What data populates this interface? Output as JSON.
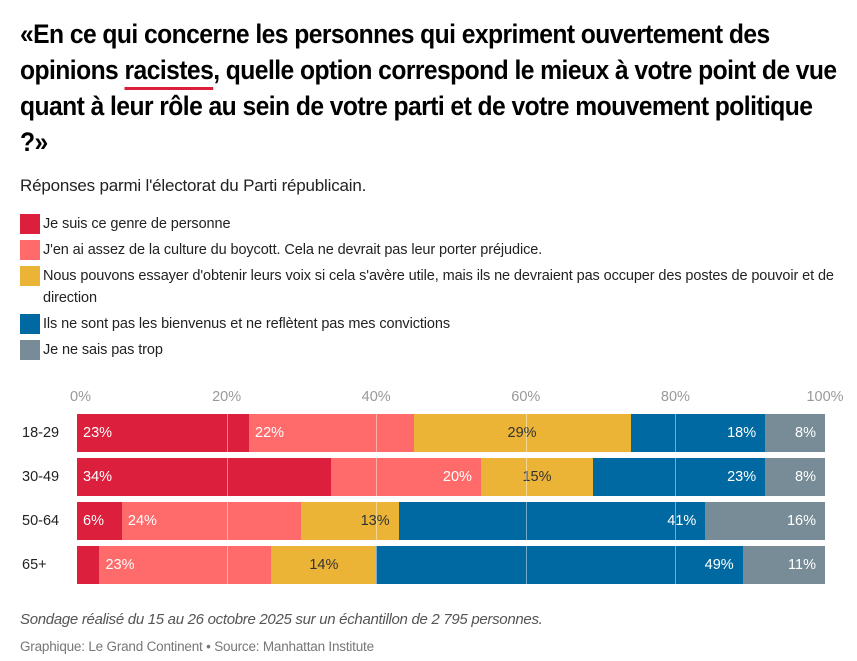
{
  "title": {
    "before": "«En ce qui concerne les personnes qui expriment ouvertement des opinions ",
    "highlight": "racistes",
    "after": ", quelle option correspond le mieux à votre point de vue quant à leur rôle au sein de votre parti et de votre mouvement politique ?»"
  },
  "subtitle": "Réponses parmi l'électorat du Parti républicain.",
  "colors": {
    "accent_underline": "#dc1f3c"
  },
  "chart_data": {
    "type": "bar",
    "orientation": "horizontal",
    "stacked": true,
    "title": "«En ce qui concerne les personnes qui expriment ouvertement des opinions racistes, quelle option correspond le mieux à votre point de vue quant à leur rôle au sein de votre parti et de votre mouvement politique ?»",
    "subtitle": "Réponses parmi l'électorat du Parti républicain.",
    "xlabel": "",
    "ylabel": "",
    "xlim": [
      0,
      100
    ],
    "x_ticks": [
      "0%",
      "20%",
      "40%",
      "60%",
      "80%",
      "100%"
    ],
    "x_tick_values": [
      0,
      20,
      40,
      60,
      80,
      100
    ],
    "grid": true,
    "legend_position": "top-left",
    "categories": [
      "18-29",
      "30-49",
      "50-64",
      "65+"
    ],
    "series": [
      {
        "name": "Je suis ce genre de personne",
        "color": "#dc1f3c",
        "label_align": "left",
        "label_color": "#ffffff",
        "values": [
          23,
          34,
          6,
          3
        ],
        "labels": [
          "23%",
          "34%",
          "6%",
          ""
        ]
      },
      {
        "name": "J'en ai assez de la culture du boycott. Cela ne devrait pas leur porter préjudice.",
        "color": "#ff6b6b",
        "label_align": "left",
        "label_color": "#ffffff",
        "values": [
          22,
          20,
          24,
          23
        ],
        "labels": [
          "22%",
          "20%",
          "24%",
          "23%"
        ],
        "label_align_overrides": {
          "1": "right"
        }
      },
      {
        "name": "Nous pouvons essayer d'obtenir leurs voix si cela s'avère utile, mais ils ne devraient pas occuper des postes de pouvoir et de direction",
        "color": "#ebb436",
        "label_align": "center",
        "label_color": "#333333",
        "values": [
          29,
          15,
          13,
          14
        ],
        "labels": [
          "29%",
          "15%",
          "13%",
          "14%"
        ],
        "label_align_overrides": {
          "2": "right"
        }
      },
      {
        "name": "Ils ne sont pas les bienvenus et ne reflètent pas mes convictions",
        "color": "#0069a1",
        "label_align": "right",
        "label_color": "#ffffff",
        "values": [
          18,
          23,
          41,
          49
        ],
        "labels": [
          "18%",
          "23%",
          "41%",
          "49%"
        ]
      },
      {
        "name": "Je ne sais pas trop",
        "color": "#778c96",
        "label_align": "right",
        "label_color": "#ffffff",
        "values": [
          8,
          8,
          16,
          11
        ],
        "labels": [
          "8%",
          "8%",
          "16%",
          "11%"
        ]
      }
    ]
  },
  "footer": {
    "note": "Sondage réalisé du 15 au 26 octobre 2025 sur un échantillon de 2 795 personnes.",
    "credit": "Graphique: Le Grand Continent • Source: Manhattan Institute"
  }
}
